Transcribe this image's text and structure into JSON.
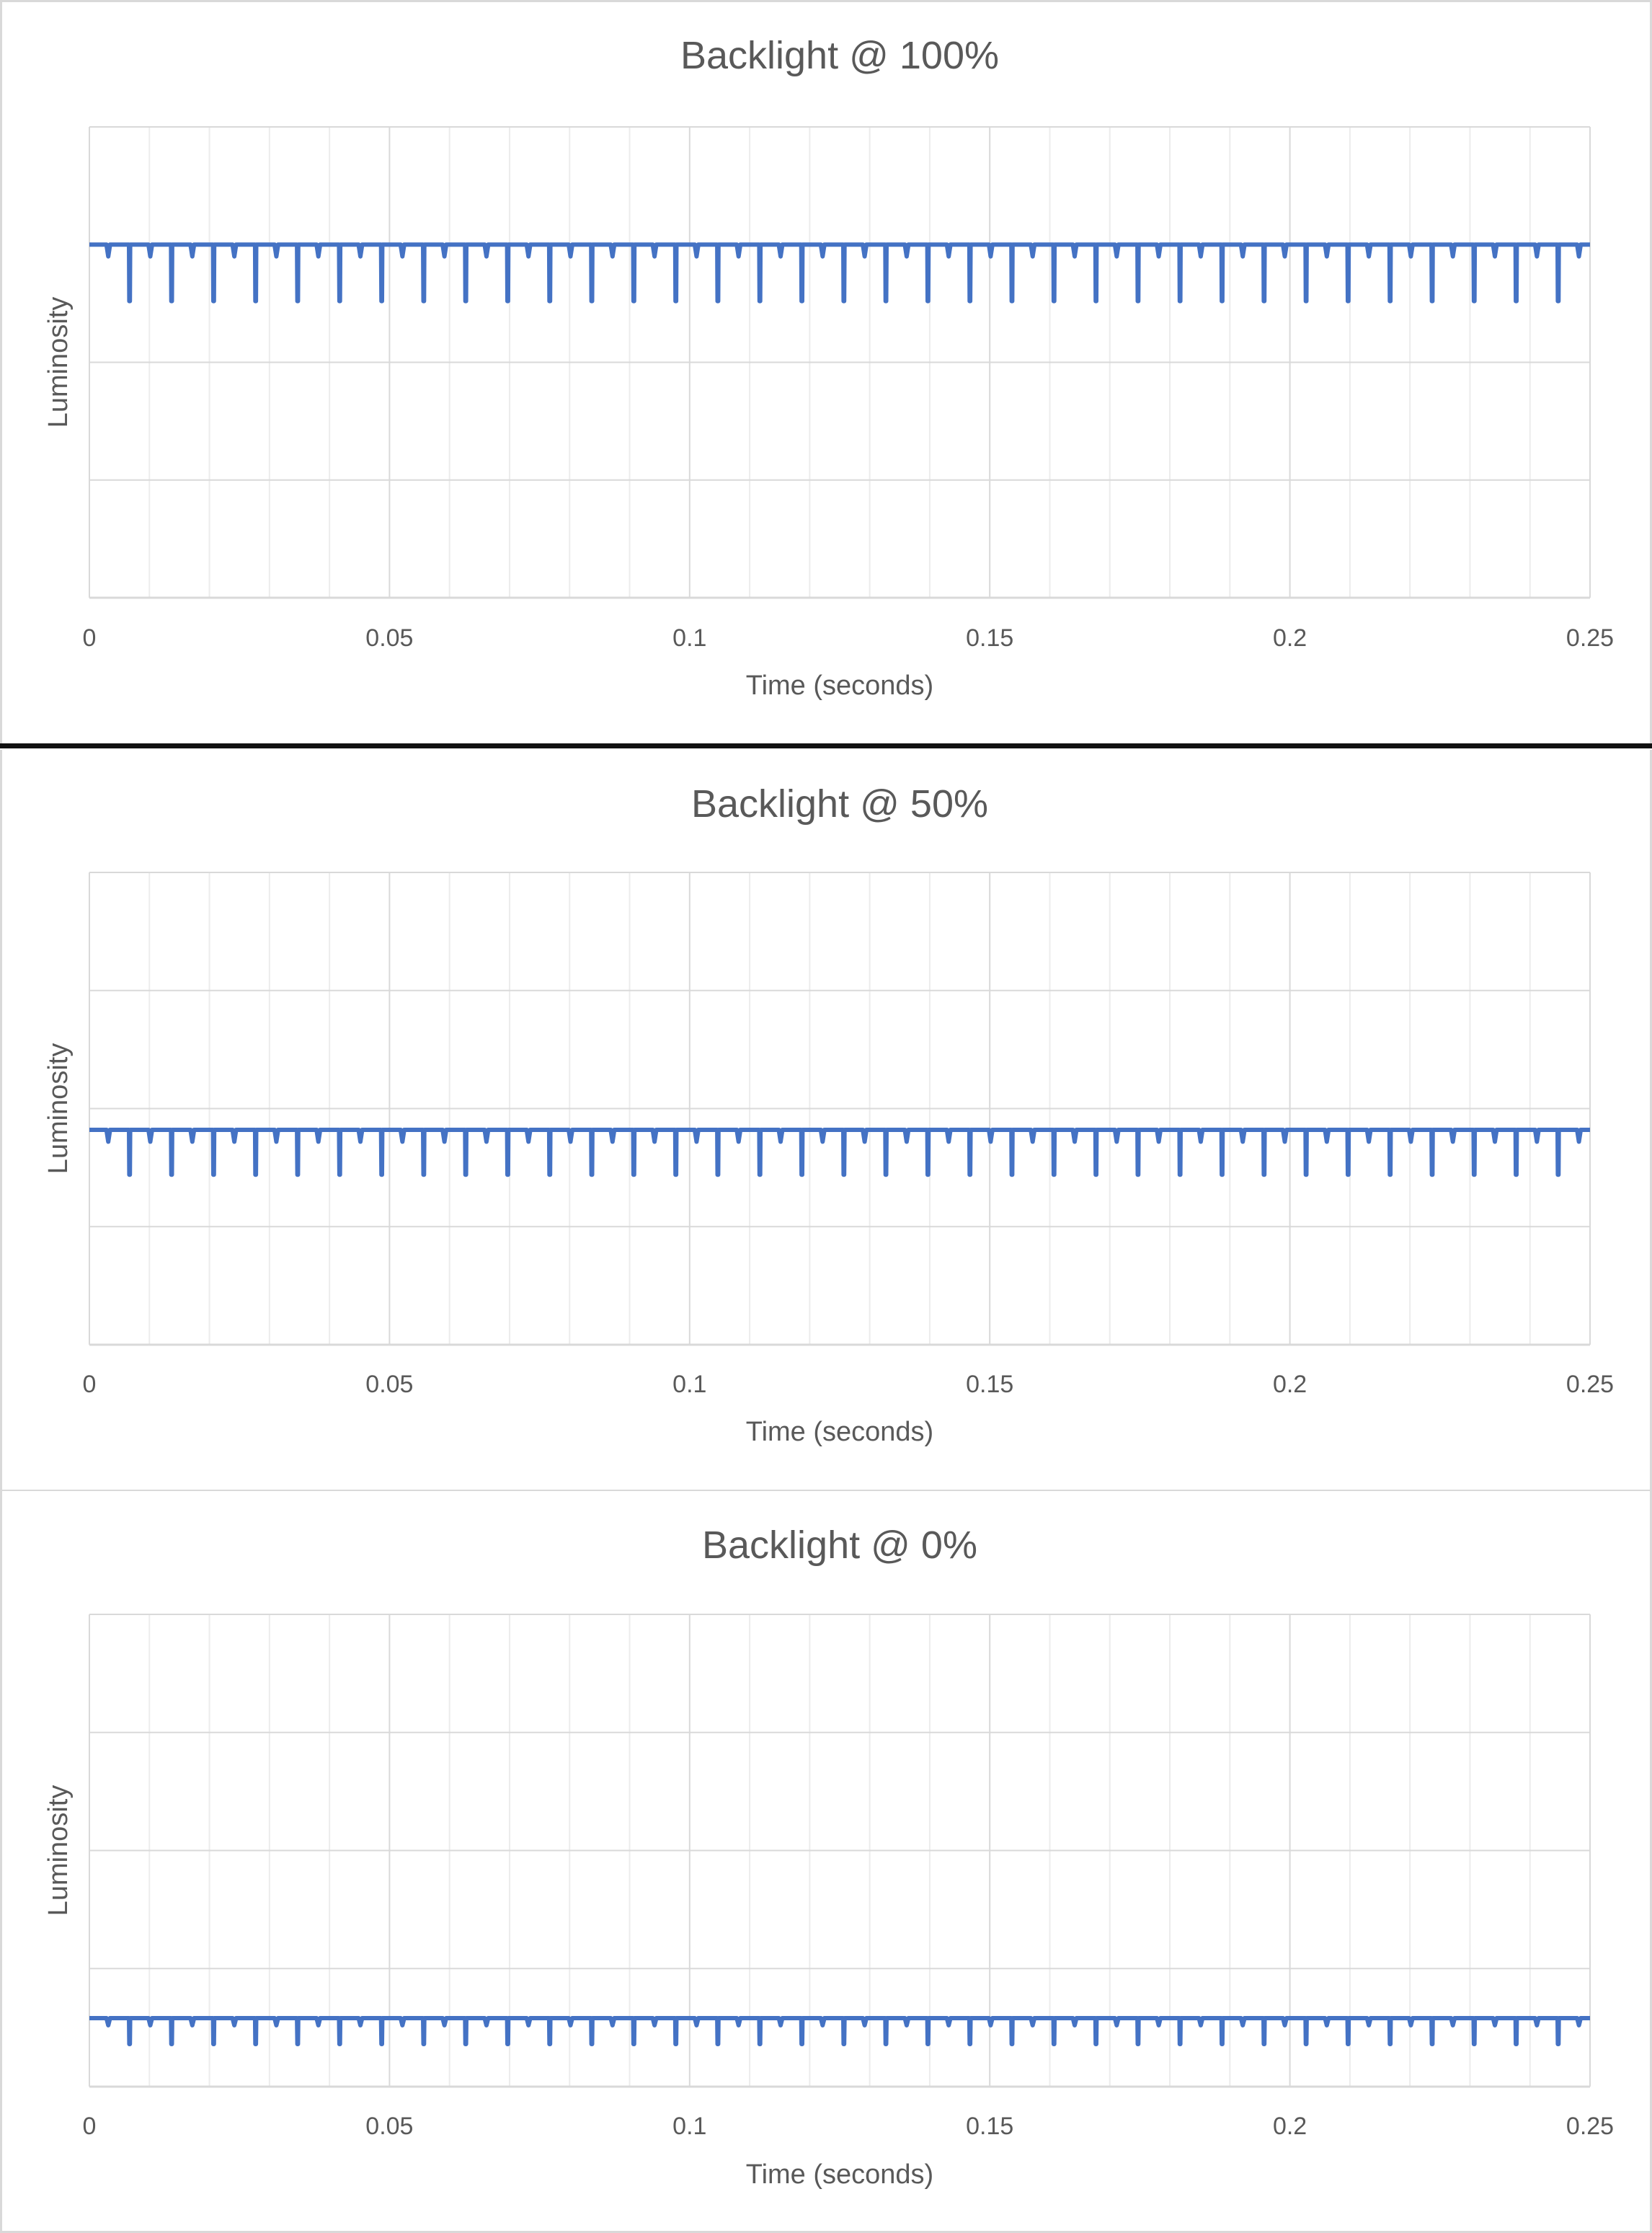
{
  "colors": {
    "series": "#4472c4",
    "grid_major": "#d9d9d9",
    "grid_minor": "#ececec",
    "text": "#595959"
  },
  "chart_data": [
    {
      "type": "line",
      "title": "Backlight @ 100%",
      "xlabel": "Time (seconds)",
      "ylabel": "Luminosity",
      "x_ticks": [
        "0",
        "0.05",
        "0.1",
        "0.15",
        "0.2",
        "0.25"
      ],
      "xlim": [
        0,
        0.25
      ],
      "ylim": [
        0,
        1
      ],
      "grid": true,
      "y_show_tick_labels": false,
      "series": [
        {
          "baseline": 0.75,
          "dip_depth": 0.12,
          "dip_period_s": 0.007,
          "minor_dip_depth": 0.025
        }
      ]
    },
    {
      "type": "line",
      "title": "Backlight @ 50%",
      "xlabel": "Time (seconds)",
      "ylabel": "Luminosity",
      "x_ticks": [
        "0",
        "0.05",
        "0.1",
        "0.15",
        "0.2",
        "0.25"
      ],
      "xlim": [
        0,
        0.25
      ],
      "ylim": [
        0,
        1
      ],
      "grid": true,
      "y_show_tick_labels": false,
      "series": [
        {
          "baseline": 0.455,
          "dip_depth": 0.095,
          "dip_period_s": 0.007,
          "minor_dip_depth": 0.025
        }
      ]
    },
    {
      "type": "line",
      "title": "Backlight @ 0%",
      "xlabel": "Time (seconds)",
      "ylabel": "Luminosity",
      "x_ticks": [
        "0",
        "0.05",
        "0.1",
        "0.15",
        "0.2",
        "0.25"
      ],
      "xlim": [
        0,
        0.25
      ],
      "ylim": [
        0,
        1
      ],
      "grid": true,
      "y_show_tick_labels": false,
      "series": [
        {
          "baseline": 0.145,
          "dip_depth": 0.055,
          "dip_period_s": 0.007,
          "minor_dip_depth": 0.015
        }
      ]
    }
  ]
}
